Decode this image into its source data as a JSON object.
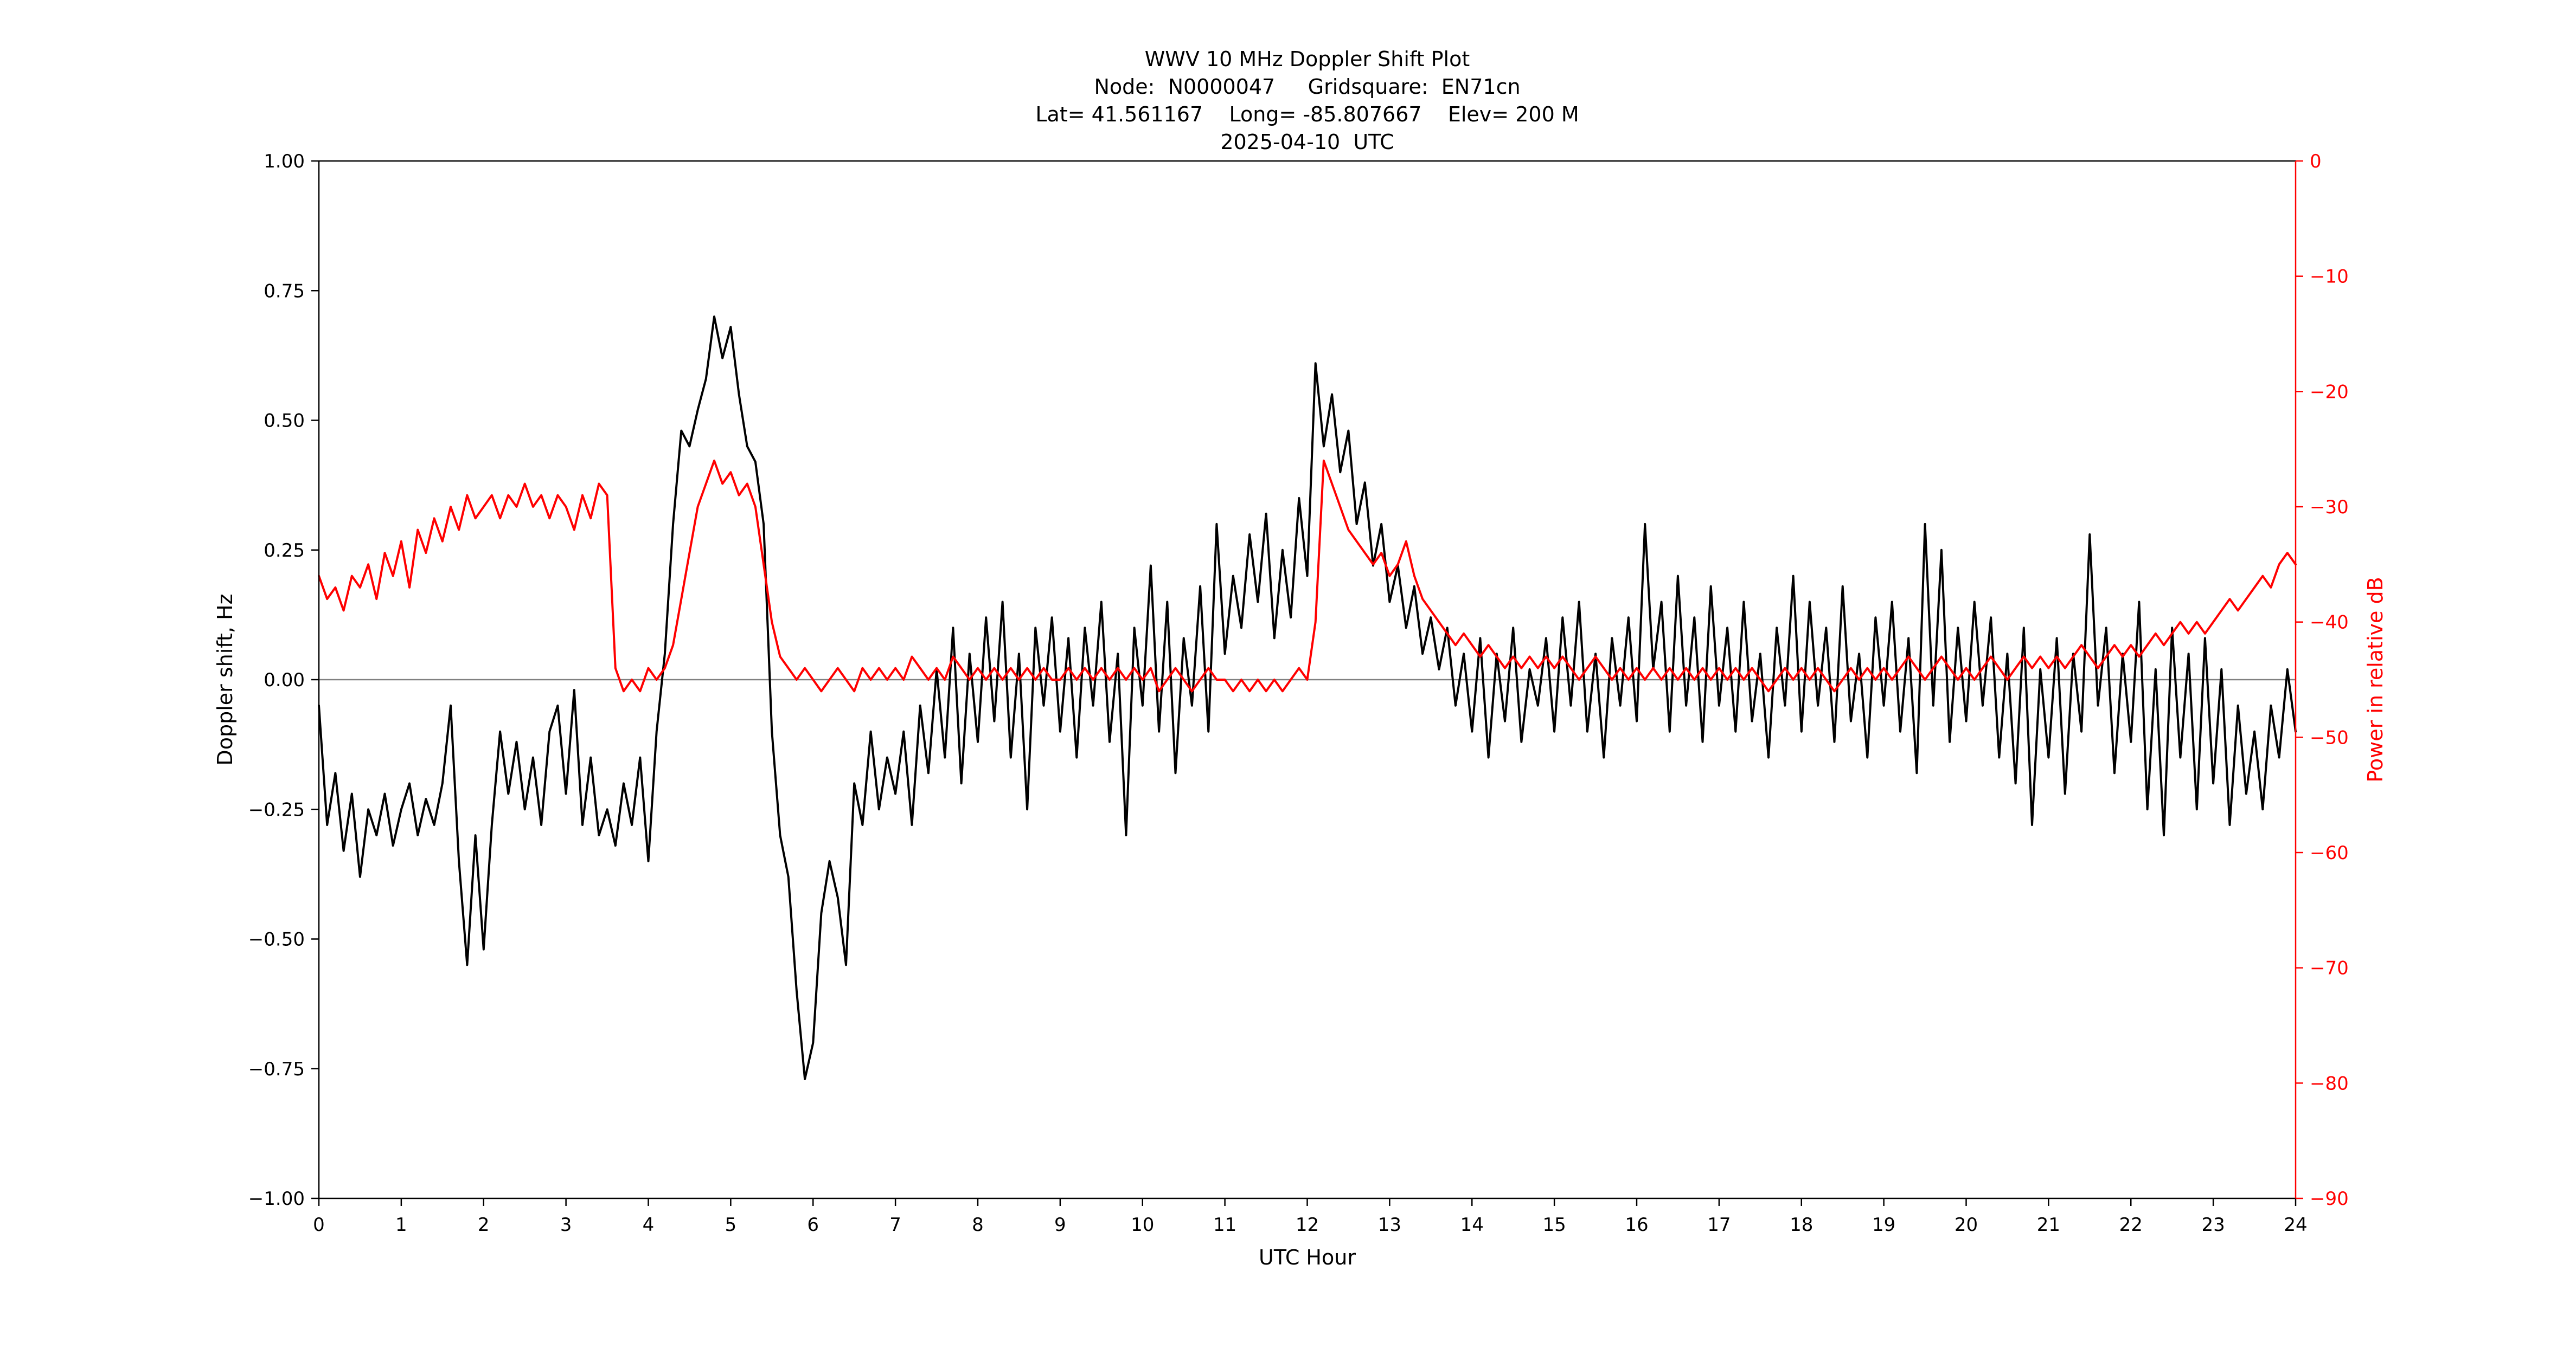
{
  "header": {
    "lines": [
      "WWV 10 MHz Doppler Shift Plot",
      "Node:  N0000047     Gridsquare:  EN71cn",
      "Lat= 41.561167    Long= -85.807667    Elev= 200 M",
      "2025-04-10  UTC"
    ]
  },
  "axes": {
    "x": {
      "label": "UTC Hour",
      "tick_values": [
        0,
        1,
        2,
        3,
        4,
        5,
        6,
        7,
        8,
        9,
        10,
        11,
        12,
        13,
        14,
        15,
        16,
        17,
        18,
        19,
        20,
        21,
        22,
        23,
        24
      ],
      "tick_labels": [
        "0",
        "1",
        "2",
        "3",
        "4",
        "5",
        "6",
        "7",
        "8",
        "9",
        "10",
        "11",
        "12",
        "13",
        "14",
        "15",
        "16",
        "17",
        "18",
        "19",
        "20",
        "21",
        "22",
        "23",
        "24"
      ]
    },
    "y_left": {
      "label": "Doppler shift, Hz",
      "tick_values": [
        1.0,
        0.75,
        0.5,
        0.25,
        0.0,
        -0.25,
        -0.5,
        -0.75,
        -1.0
      ],
      "tick_labels": [
        "1.00",
        "0.75",
        "0.50",
        "0.25",
        "0.00",
        "−0.25",
        "−0.50",
        "−0.75",
        "−1.00"
      ],
      "color": "#000000"
    },
    "y_right": {
      "label": "Power in relative dB",
      "tick_values": [
        0,
        -10,
        -20,
        -30,
        -40,
        -50,
        -60,
        -70,
        -80,
        -90
      ],
      "tick_labels": [
        "0",
        "−10",
        "−20",
        "−30",
        "−40",
        "−50",
        "−60",
        "−70",
        "−80",
        "−90"
      ],
      "color": "#ff0000"
    }
  },
  "zero_line": {
    "value": 0.0,
    "color": "#808080"
  },
  "colors": {
    "background": "#ffffff",
    "spine": "#000000",
    "right_spine": "#ff0000",
    "doppler": "#000000",
    "power": "#ff0000"
  },
  "chart_data": {
    "type": "line",
    "title": "WWV 10 MHz Doppler Shift Plot",
    "xlabel": "UTC Hour",
    "ylabel_left": "Doppler shift, Hz",
    "ylabel_right": "Power in relative dB",
    "xlim": [
      0,
      24
    ],
    "ylim_left": [
      -1.0,
      1.0
    ],
    "ylim_right": [
      -90,
      0
    ],
    "grid": false,
    "legend": "none",
    "x_start": 0,
    "x_step": 0.1,
    "series": [
      {
        "name": "Doppler shift",
        "axis": "left",
        "units": "Hz",
        "color": "#000000",
        "values": [
          -0.05,
          -0.28,
          -0.18,
          -0.33,
          -0.22,
          -0.38,
          -0.25,
          -0.3,
          -0.22,
          -0.32,
          -0.25,
          -0.2,
          -0.3,
          -0.23,
          -0.28,
          -0.2,
          -0.05,
          -0.35,
          -0.55,
          -0.3,
          -0.52,
          -0.28,
          -0.1,
          -0.22,
          -0.12,
          -0.25,
          -0.15,
          -0.28,
          -0.1,
          -0.05,
          -0.22,
          -0.02,
          -0.28,
          -0.15,
          -0.3,
          -0.25,
          -0.32,
          -0.2,
          -0.28,
          -0.15,
          -0.35,
          -0.1,
          0.05,
          0.3,
          0.48,
          0.45,
          0.52,
          0.58,
          0.7,
          0.62,
          0.68,
          0.55,
          0.45,
          0.42,
          0.3,
          -0.1,
          -0.3,
          -0.38,
          -0.6,
          -0.77,
          -0.7,
          -0.45,
          -0.35,
          -0.42,
          -0.55,
          -0.2,
          -0.28,
          -0.1,
          -0.25,
          -0.15,
          -0.22,
          -0.1,
          -0.28,
          -0.05,
          -0.18,
          0.02,
          -0.15,
          0.1,
          -0.2,
          0.05,
          -0.12,
          0.12,
          -0.08,
          0.15,
          -0.15,
          0.05,
          -0.25,
          0.1,
          -0.05,
          0.12,
          -0.1,
          0.08,
          -0.15,
          0.1,
          -0.05,
          0.15,
          -0.12,
          0.05,
          -0.3,
          0.1,
          -0.05,
          0.22,
          -0.1,
          0.15,
          -0.18,
          0.08,
          -0.05,
          0.18,
          -0.1,
          0.3,
          0.05,
          0.2,
          0.1,
          0.28,
          0.15,
          0.32,
          0.08,
          0.25,
          0.12,
          0.35,
          0.2,
          0.61,
          0.45,
          0.55,
          0.4,
          0.48,
          0.3,
          0.38,
          0.22,
          0.3,
          0.15,
          0.22,
          0.1,
          0.18,
          0.05,
          0.12,
          0.02,
          0.1,
          -0.05,
          0.05,
          -0.1,
          0.08,
          -0.15,
          0.05,
          -0.08,
          0.1,
          -0.12,
          0.02,
          -0.05,
          0.08,
          -0.1,
          0.12,
          -0.05,
          0.15,
          -0.1,
          0.05,
          -0.15,
          0.08,
          -0.05,
          0.12,
          -0.08,
          0.3,
          0.02,
          0.15,
          -0.1,
          0.2,
          -0.05,
          0.12,
          -0.12,
          0.18,
          -0.05,
          0.1,
          -0.1,
          0.15,
          -0.08,
          0.05,
          -0.15,
          0.1,
          -0.05,
          0.2,
          -0.1,
          0.15,
          -0.05,
          0.1,
          -0.12,
          0.18,
          -0.08,
          0.05,
          -0.15,
          0.12,
          -0.05,
          0.15,
          -0.1,
          0.08,
          -0.18,
          0.3,
          -0.05,
          0.25,
          -0.12,
          0.1,
          -0.08,
          0.15,
          -0.05,
          0.12,
          -0.15,
          0.05,
          -0.2,
          0.1,
          -0.28,
          0.02,
          -0.15,
          0.08,
          -0.22,
          0.05,
          -0.1,
          0.28,
          -0.05,
          0.1,
          -0.18,
          0.05,
          -0.12,
          0.15,
          -0.25,
          0.02,
          -0.3,
          0.1,
          -0.15,
          0.05,
          -0.25,
          0.08,
          -0.2,
          0.02,
          -0.28,
          -0.05,
          -0.22,
          -0.1,
          -0.25,
          -0.05,
          -0.15,
          0.02,
          -0.1
        ]
      },
      {
        "name": "Power",
        "axis": "right",
        "units": "relative dB",
        "color": "#ff0000",
        "values": [
          -36,
          -38,
          -37,
          -39,
          -36,
          -37,
          -35,
          -38,
          -34,
          -36,
          -33,
          -37,
          -32,
          -34,
          -31,
          -33,
          -30,
          -32,
          -29,
          -31,
          -30,
          -29,
          -31,
          -29,
          -30,
          -28,
          -30,
          -29,
          -31,
          -29,
          -30,
          -32,
          -29,
          -31,
          -28,
          -29,
          -44,
          -46,
          -45,
          -46,
          -44,
          -45,
          -44,
          -42,
          -38,
          -34,
          -30,
          -28,
          -26,
          -28,
          -27,
          -29,
          -28,
          -30,
          -35,
          -40,
          -43,
          -44,
          -45,
          -44,
          -45,
          -46,
          -45,
          -44,
          -45,
          -46,
          -44,
          -45,
          -44,
          -45,
          -44,
          -45,
          -43,
          -44,
          -45,
          -44,
          -45,
          -43,
          -44,
          -45,
          -44,
          -45,
          -44,
          -45,
          -44,
          -45,
          -44,
          -45,
          -44,
          -45,
          -45,
          -44,
          -45,
          -44,
          -45,
          -44,
          -45,
          -44,
          -45,
          -44,
          -45,
          -44,
          -46,
          -45,
          -44,
          -45,
          -46,
          -45,
          -44,
          -45,
          -45,
          -46,
          -45,
          -46,
          -45,
          -46,
          -45,
          -46,
          -45,
          -44,
          -45,
          -40,
          -26,
          -28,
          -30,
          -32,
          -33,
          -34,
          -35,
          -34,
          -36,
          -35,
          -33,
          -36,
          -38,
          -39,
          -40,
          -41,
          -42,
          -41,
          -42,
          -43,
          -42,
          -43,
          -44,
          -43,
          -44,
          -43,
          -44,
          -43,
          -44,
          -43,
          -44,
          -45,
          -44,
          -43,
          -44,
          -45,
          -44,
          -45,
          -44,
          -45,
          -44,
          -45,
          -44,
          -45,
          -44,
          -45,
          -44,
          -45,
          -44,
          -45,
          -44,
          -45,
          -44,
          -45,
          -46,
          -45,
          -44,
          -45,
          -44,
          -45,
          -44,
          -45,
          -46,
          -45,
          -44,
          -45,
          -44,
          -45,
          -44,
          -45,
          -44,
          -43,
          -44,
          -45,
          -44,
          -43,
          -44,
          -45,
          -44,
          -45,
          -44,
          -43,
          -44,
          -45,
          -44,
          -43,
          -44,
          -43,
          -44,
          -43,
          -44,
          -43,
          -42,
          -43,
          -44,
          -43,
          -42,
          -43,
          -42,
          -43,
          -42,
          -41,
          -42,
          -41,
          -40,
          -41,
          -40,
          -41,
          -40,
          -39,
          -38,
          -39,
          -38,
          -37,
          -36,
          -37,
          -35,
          -34,
          -35
        ]
      }
    ]
  }
}
